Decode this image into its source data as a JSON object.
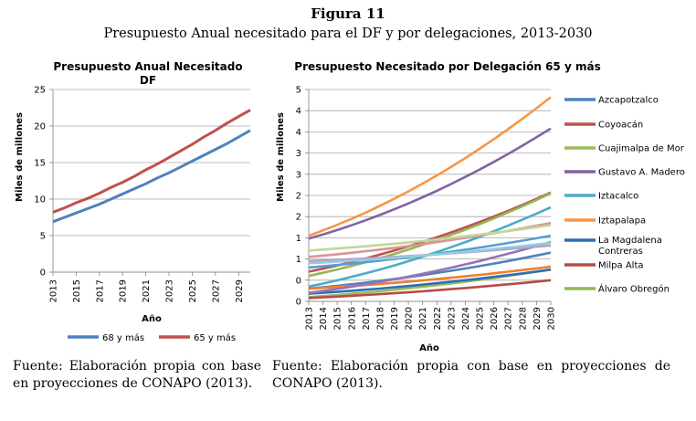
{
  "figure": {
    "label": "Figura 11",
    "subtitle": "Presupuesto Anual necesitado para el DF y por delegaciones, 2013-2030"
  },
  "sources": {
    "left": "Fuente: Elaboración propia con base en proyecciones de CONAPO (2013).",
    "right": "Fuente: Elaboración propia con base en proyecciones de CONAPO (2013)."
  },
  "chart_data": [
    {
      "type": "line",
      "title_lines": [
        "Presupuesto Anual Necesitado",
        "DF"
      ],
      "xlabel": "Año",
      "ylabel": "Miles de millones",
      "ylim": [
        0,
        25
      ],
      "xlim": [
        2013,
        2030
      ],
      "y_ticks": [
        "0",
        "5",
        "10",
        "15",
        "20",
        "25"
      ],
      "x_ticks": [
        "2013",
        "2015",
        "2017",
        "2019",
        "2021",
        "2023",
        "2025",
        "2027",
        "2029"
      ],
      "grid": true,
      "legend_position": "bottom",
      "x": [
        2013,
        2014,
        2015,
        2016,
        2017,
        2018,
        2019,
        2020,
        2021,
        2022,
        2023,
        2024,
        2025,
        2026,
        2027,
        2028,
        2029,
        2030
      ],
      "series": [
        {
          "name": "68 y más",
          "color": "#4f81bd",
          "values": [
            6.9,
            7.5,
            8.1,
            8.7,
            9.3,
            10.0,
            10.7,
            11.4,
            12.1,
            12.9,
            13.6,
            14.4,
            15.2,
            16.0,
            16.8,
            17.6,
            18.5,
            19.4
          ]
        },
        {
          "name": "65 y más",
          "color": "#c0504d",
          "values": [
            8.2,
            8.8,
            9.5,
            10.1,
            10.8,
            11.6,
            12.3,
            13.1,
            14.0,
            14.8,
            15.7,
            16.6,
            17.5,
            18.5,
            19.4,
            20.4,
            21.3,
            22.2
          ]
        }
      ]
    },
    {
      "type": "line",
      "title": "Presupuesto Necesitado por Delegación 65 y más",
      "xlabel": "Año",
      "ylabel": "Miles de millones",
      "ylim": [
        0,
        5
      ],
      "xlim": [
        2013,
        2030
      ],
      "y_ticks": [
        "0",
        "0",
        "1",
        "1",
        "2",
        "2",
        "3",
        "3",
        "4",
        "4",
        "5"
      ],
      "x_ticks": [
        "2013",
        "2014",
        "2015",
        "2016",
        "2017",
        "2018",
        "2019",
        "2020",
        "2021",
        "2022",
        "2023",
        "2024",
        "2025",
        "2026",
        "2027",
        "2028",
        "2029",
        "2030"
      ],
      "grid": true,
      "legend_position": "right",
      "series": [
        {
          "name": "Azcapotzalco",
          "color": "#4f81bd",
          "start": 0.3,
          "end": 1.15,
          "legend": true
        },
        {
          "name": "Coyoacán",
          "color": "#c0504d",
          "start": 0.7,
          "end": 2.57,
          "legend": true
        },
        {
          "name": "Cuajimalpa de Mor",
          "color": "#9bbb59",
          "start": 0.1,
          "end": 0.75,
          "legend": true
        },
        {
          "name": "Gustavo A. Madero",
          "color": "#8064a2",
          "start": 1.48,
          "end": 4.08,
          "legend": true
        },
        {
          "name": "Iztacalco",
          "color": "#4bacc6",
          "start": 0.35,
          "end": 2.22,
          "legend": true
        },
        {
          "name": "Iztapalapa",
          "color": "#f79646",
          "start": 1.55,
          "end": 4.82,
          "legend": true
        },
        {
          "name": "La Magdalena Contreras",
          "color": "#2c6fb6",
          "start": 0.18,
          "end": 0.75,
          "legend": true
        },
        {
          "name": "Milpa Alta",
          "color": "#b84a46",
          "start": 0.08,
          "end": 0.5,
          "legend": true
        },
        {
          "name": "Álvaro Obregón",
          "color": "#93b854",
          "start": 0.6,
          "end": 2.55,
          "legend": true
        },
        {
          "name": "",
          "color": "#f07f2b",
          "start": 0.3,
          "end": 0.82,
          "legend": false
        },
        {
          "name": "",
          "color": "#9673b8",
          "start": 0.2,
          "end": 1.4,
          "legend": false
        },
        {
          "name": "",
          "color": "#5b9bd5",
          "start": 0.8,
          "end": 1.55,
          "legend": false
        },
        {
          "name": "",
          "color": "#d99594",
          "start": 1.05,
          "end": 1.85,
          "legend": false
        },
        {
          "name": "",
          "color": "#b3a2c7",
          "start": 0.95,
          "end": 1.32,
          "legend": false
        },
        {
          "name": "",
          "color": "#c3d69b",
          "start": 1.2,
          "end": 1.8,
          "legend": false
        },
        {
          "name": "",
          "color": "#93cddd",
          "start": 0.9,
          "end": 1.38,
          "legend": false
        }
      ]
    }
  ]
}
